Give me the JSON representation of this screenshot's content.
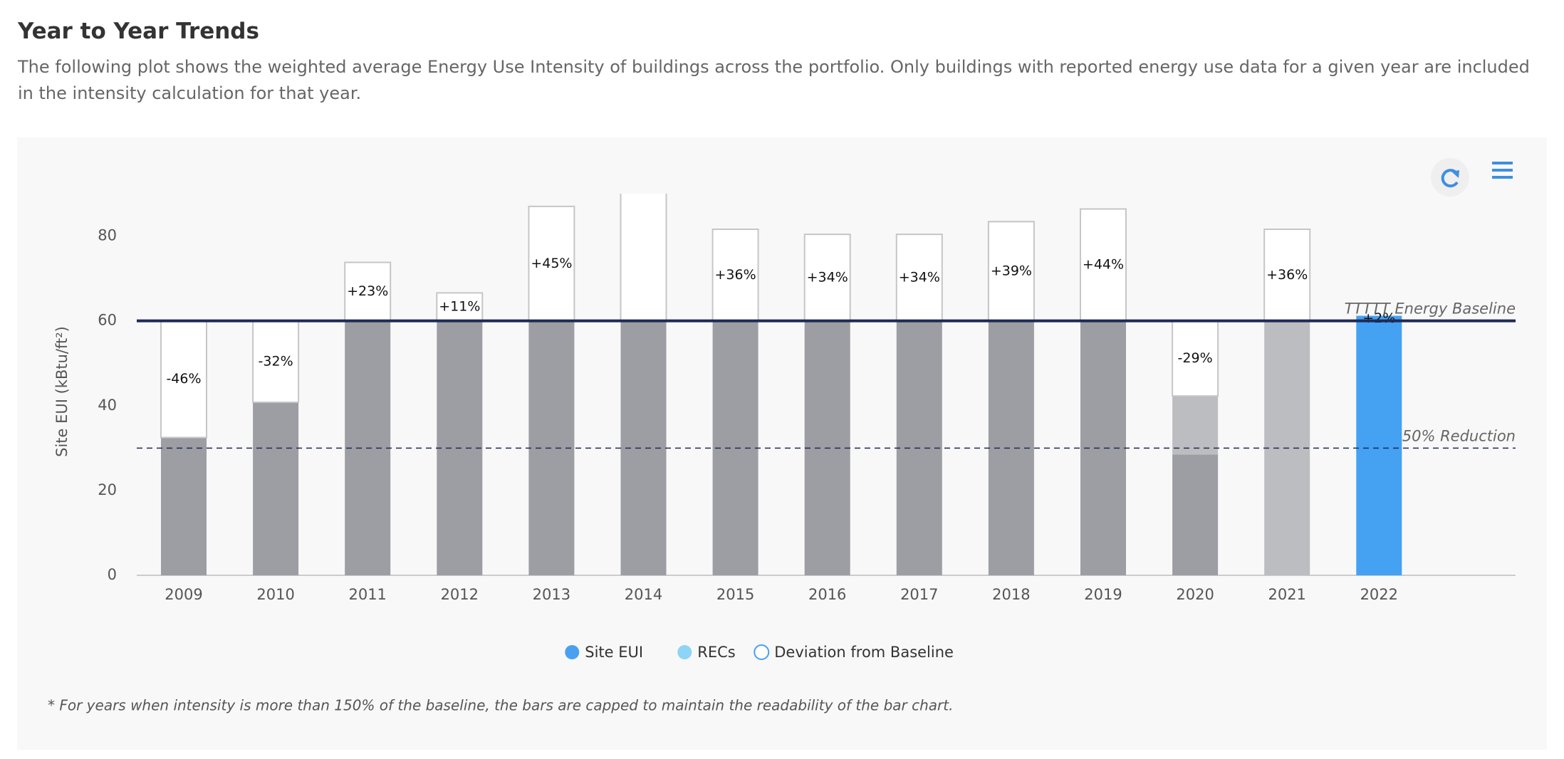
{
  "title": "Year to Year Trends",
  "description": "The following plot shows the weighted average Energy Use Intensity of buildings across the portfolio. Only buildings with reported energy use data for a given year are included in the intensity calculation for that year.",
  "chart_data": {
    "type": "stacked_bar",
    "y_label": "Site EUI (kBtu/ft²)",
    "categories": [
      "2009",
      "2010",
      "2011",
      "2012",
      "2013",
      "2014",
      "2015",
      "2016",
      "2017",
      "2018",
      "2019",
      "2020",
      "2021",
      "2022"
    ],
    "series": [
      {
        "name": "Site EUI",
        "color": "#4aa0f0",
        "bar_colors": [
          "#9c9ea3",
          "#9c9ea3",
          "#9c9ea3",
          "#9c9ea3",
          "#9c9ea3",
          "#9c9ea3",
          "#9c9ea3",
          "#9c9ea3",
          "#9c9ea3",
          "#9c9ea3",
          "#9c9ea3",
          "#9c9ea3",
          "#9c9ea3",
          "#45a1f2"
        ],
        "values": [
          32.5,
          40.8,
          60,
          60,
          60,
          60,
          60,
          60,
          60,
          60,
          60,
          28.5,
          null,
          61.2
        ]
      },
      {
        "name": "RECs",
        "color": "#8ed4f6",
        "bar_colors": [
          "#bcbdc0",
          "#bcbdc0",
          "#bcbdc0",
          "#bcbdc0",
          "#bcbdc0",
          "#bcbdc0",
          "#bcbdc0",
          "#bcbdc0",
          "#bcbdc0",
          "#bcbdc0",
          "#bcbdc0",
          "#bcbdc0",
          "#bcbdc0",
          "#8ed4f6"
        ],
        "values": [
          null,
          null,
          null,
          null,
          null,
          null,
          null,
          null,
          null,
          null,
          null,
          13.8,
          60,
          null
        ]
      },
      {
        "name": "Deviation from Baseline",
        "color": "#4aa0f0",
        "hollow": true,
        "outline": "#c6c6c8",
        "values": [
          27.5,
          19.2,
          13.8,
          6.6,
          27,
          30,
          21.6,
          20.4,
          20.4,
          23.4,
          26.4,
          17.7,
          21.6,
          null
        ]
      }
    ],
    "deviation_pct": {
      "values": [
        -46,
        -32,
        23,
        11,
        45,
        null,
        36,
        34,
        34,
        39,
        44,
        -29,
        36,
        2
      ],
      "value_labels": [
        "-46%",
        "-32%",
        "+23%",
        "+11%",
        "+45%",
        null,
        "+36%",
        "+34%",
        "+34%",
        "+39%",
        "+44%",
        "-29%",
        "+36%",
        "+2%"
      ]
    },
    "reference_lines": [
      {
        "value": 60,
        "label": "TTTTT Energy Baseline",
        "style": "solid",
        "color": "#1f2a55"
      },
      {
        "value": 30,
        "label": "50% Reduction",
        "style": "dashed",
        "color": "#1f2a55"
      }
    ],
    "ylim": [
      0,
      90
    ],
    "yticks": [
      0,
      20,
      40,
      60,
      80
    ],
    "footnote": "* For years when intensity is more than 150% of the baseline, the bars are capped to maintain the readability of the bar chart."
  }
}
